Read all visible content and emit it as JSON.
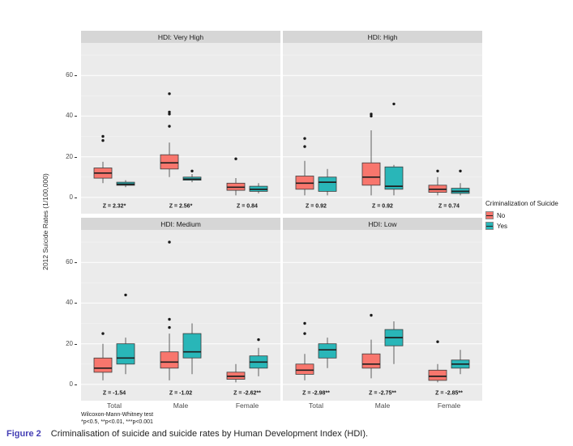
{
  "caption": {
    "label": "Figure 2",
    "label_color": "#453FB5",
    "text": "Criminalisation of suicide and suicide rates by Human Development Index (HDI)."
  },
  "footnotes": [
    "Wilcoxon-Mann-Whitney test",
    "*p<0.5, **p<0.01, ***p<0.001"
  ],
  "legend": {
    "title": "Criminalization of Suicide",
    "entries": [
      {
        "label": "No",
        "color": "#F8766D"
      },
      {
        "label": "Yes",
        "color": "#29B6B8"
      }
    ]
  },
  "chart_data": {
    "type": "boxplot",
    "title": "",
    "xlabel": "",
    "ylabel": "2012 Suicide Rates (1/100,000)",
    "ylim": [
      -8,
      76
    ],
    "yticks": [
      0,
      20,
      40,
      60
    ],
    "yticks_minor": [
      10,
      30,
      50,
      70
    ],
    "categories": [
      "Total",
      "Male",
      "Female"
    ],
    "series": [
      "No",
      "Yes"
    ],
    "legend_title": "Criminalization of Suicide",
    "legend_position": "right",
    "grid": "on",
    "colors": {
      "no": "#F8766D",
      "yes": "#29B6B8",
      "panel_bg": "#EBEBEB",
      "strip_bg": "#D6D6D6",
      "grid": "#FFFFFF",
      "box_stroke": "#3C3C3C",
      "outlier": "#1A1A1A"
    },
    "panels": [
      {
        "title": "HDI: Very High",
        "z_labels": [
          "Z = 2.32*",
          "Z = 2.56*",
          "Z = 0.84"
        ],
        "groups": [
          {
            "category": "Total",
            "no": {
              "whislo": 7,
              "q1": 9.5,
              "med": 12,
              "q3": 14.5,
              "whishi": 17.5,
              "outliers": [
                28,
                30
              ]
            },
            "yes": {
              "whislo": 5,
              "q1": 6,
              "med": 6.5,
              "q3": 7.5,
              "whishi": 8.5,
              "outliers": []
            }
          },
          {
            "category": "Male",
            "no": {
              "whislo": 10,
              "q1": 14,
              "med": 17,
              "q3": 21,
              "whishi": 27,
              "outliers": [
                35,
                41,
                42,
                51
              ]
            },
            "yes": {
              "whislo": 7.5,
              "q1": 8.5,
              "med": 9,
              "q3": 10,
              "whishi": 11.5,
              "outliers": [
                13
              ]
            }
          },
          {
            "category": "Female",
            "no": {
              "whislo": 1,
              "q1": 3.5,
              "med": 5,
              "q3": 7,
              "whishi": 9.5,
              "outliers": [
                19
              ]
            },
            "yes": {
              "whislo": 2,
              "q1": 3,
              "med": 4,
              "q3": 5.5,
              "whishi": 7,
              "outliers": []
            }
          }
        ]
      },
      {
        "title": "HDI: High",
        "z_labels": [
          "Z = 0.92",
          "Z = 0.92",
          "Z = 0.74"
        ],
        "groups": [
          {
            "category": "Total",
            "no": {
              "whislo": 1,
              "q1": 4,
              "med": 7,
              "q3": 10.5,
              "whishi": 18,
              "outliers": [
                25,
                29
              ]
            },
            "yes": {
              "whislo": 1,
              "q1": 3,
              "med": 7.5,
              "q3": 10,
              "whishi": 14,
              "outliers": []
            }
          },
          {
            "category": "Male",
            "no": {
              "whislo": 1,
              "q1": 6,
              "med": 10,
              "q3": 17,
              "whishi": 33,
              "outliers": [
                40,
                41
              ]
            },
            "yes": {
              "whislo": 1,
              "q1": 4,
              "med": 5.5,
              "q3": 15,
              "whishi": 16,
              "outliers": [
                46
              ]
            }
          },
          {
            "category": "Female",
            "no": {
              "whislo": 1,
              "q1": 2.5,
              "med": 4,
              "q3": 6,
              "whishi": 10,
              "outliers": [
                13
              ]
            },
            "yes": {
              "whislo": 1,
              "q1": 2,
              "med": 3,
              "q3": 4.5,
              "whishi": 7,
              "outliers": [
                13
              ]
            }
          }
        ]
      },
      {
        "title": "HDI: Medium",
        "z_labels": [
          "Z = -1.54",
          "Z = -1.02",
          "Z = -2.62**"
        ],
        "groups": [
          {
            "category": "Total",
            "no": {
              "whislo": 2,
              "q1": 6,
              "med": 8,
              "q3": 13,
              "whishi": 20,
              "outliers": [
                25
              ]
            },
            "yes": {
              "whislo": 5,
              "q1": 10,
              "med": 13,
              "q3": 20,
              "whishi": 23,
              "outliers": [
                44
              ]
            }
          },
          {
            "category": "Male",
            "no": {
              "whislo": 2,
              "q1": 8,
              "med": 11,
              "q3": 16,
              "whishi": 25,
              "outliers": [
                28,
                32,
                70
              ]
            },
            "yes": {
              "whislo": 5,
              "q1": 13,
              "med": 16,
              "q3": 25,
              "whishi": 30,
              "outliers": []
            }
          },
          {
            "category": "Female",
            "no": {
              "whislo": 1,
              "q1": 2.5,
              "med": 4,
              "q3": 6,
              "whishi": 10,
              "outliers": []
            },
            "yes": {
              "whislo": 4,
              "q1": 8,
              "med": 11,
              "q3": 14,
              "whishi": 18,
              "outliers": [
                22
              ]
            }
          }
        ]
      },
      {
        "title": "HDI: Low",
        "z_labels": [
          "Z = -2.98**",
          "Z = -2.75**",
          "Z = -2.85**"
        ],
        "groups": [
          {
            "category": "Total",
            "no": {
              "whislo": 2,
              "q1": 5,
              "med": 7,
              "q3": 10,
              "whishi": 15,
              "outliers": [
                25,
                30
              ]
            },
            "yes": {
              "whislo": 8,
              "q1": 13,
              "med": 17,
              "q3": 20,
              "whishi": 23,
              "outliers": []
            }
          },
          {
            "category": "Male",
            "no": {
              "whislo": 3,
              "q1": 8,
              "med": 10,
              "q3": 15,
              "whishi": 22,
              "outliers": [
                34
              ]
            },
            "yes": {
              "whislo": 10,
              "q1": 19,
              "med": 23,
              "q3": 27,
              "whishi": 31,
              "outliers": []
            }
          },
          {
            "category": "Female",
            "no": {
              "whislo": 1,
              "q1": 2,
              "med": 4,
              "q3": 7,
              "whishi": 10,
              "outliers": [
                21
              ]
            },
            "yes": {
              "whislo": 5,
              "q1": 8,
              "med": 10,
              "q3": 12,
              "whishi": 17,
              "outliers": []
            }
          }
        ]
      }
    ]
  }
}
